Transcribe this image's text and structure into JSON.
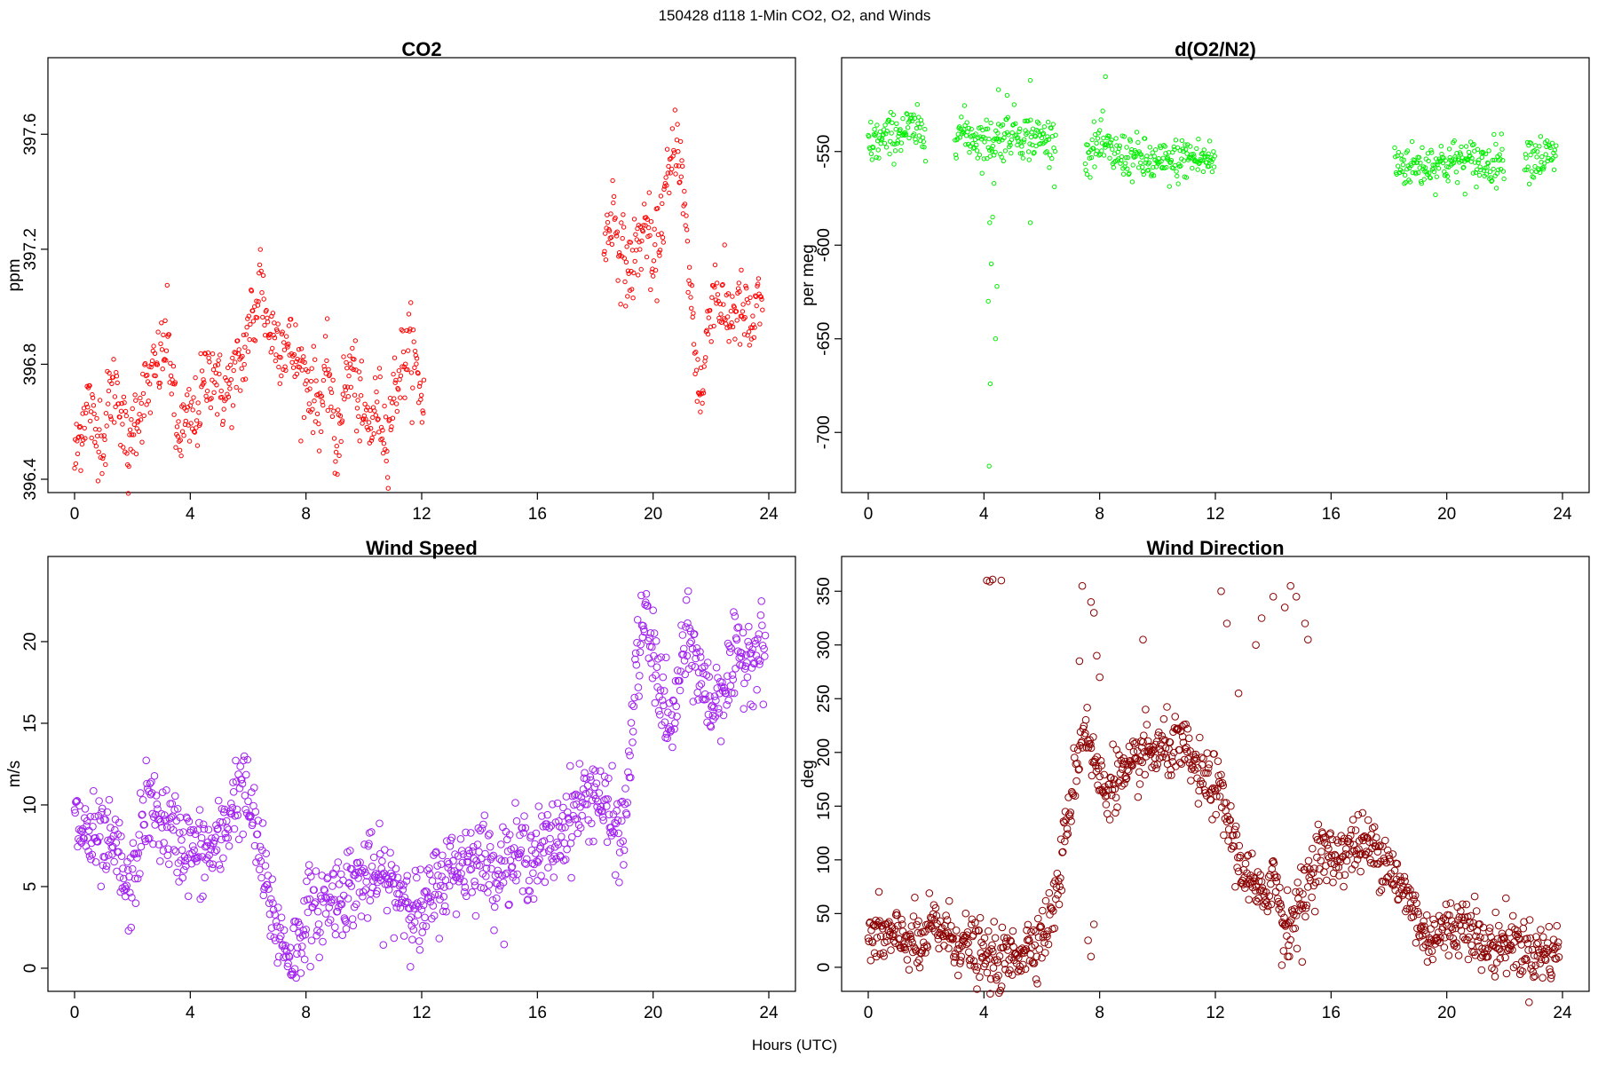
{
  "figure": {
    "title": "150428   d118   1-Min CO2, O2, and Winds",
    "xlabel": "Hours (UTC)"
  },
  "chart_data": [
    {
      "id": "co2",
      "type": "scatter",
      "title": "CO2",
      "xlabel": "",
      "ylabel": "ppm",
      "xlim": [
        0,
        24
      ],
      "ylim": [
        396.4,
        397.82
      ],
      "xticks": [
        0,
        4,
        8,
        12,
        16,
        20,
        24
      ],
      "yticks": [
        396.4,
        396.8,
        397.2,
        397.6
      ],
      "ytick_labels": [
        "396.4",
        "396.8",
        "397.2",
        "397.6"
      ],
      "color": "#ff0000",
      "marker_radius": 2.2,
      "segments": [
        [
          0.0,
          396.46
        ],
        [
          0.3,
          396.62
        ],
        [
          0.5,
          396.68
        ],
        [
          0.7,
          396.55
        ],
        [
          0.9,
          396.6
        ],
        [
          1.0,
          396.5
        ],
        [
          1.2,
          396.7
        ],
        [
          1.5,
          396.72
        ],
        [
          1.7,
          396.58
        ],
        [
          1.9,
          396.44
        ],
        [
          2.0,
          396.6
        ],
        [
          3.0,
          396.82
        ],
        [
          3.2,
          396.9
        ],
        [
          3.4,
          396.74
        ],
        [
          3.5,
          396.55
        ],
        [
          3.8,
          396.58
        ],
        [
          4.0,
          396.6
        ],
        [
          4.2,
          396.62
        ],
        [
          4.5,
          396.74
        ],
        [
          4.8,
          396.8
        ],
        [
          5.0,
          396.7
        ],
        [
          5.3,
          396.7
        ],
        [
          5.5,
          396.76
        ],
        [
          5.8,
          396.8
        ],
        [
          6.0,
          396.92
        ],
        [
          6.1,
          396.98
        ],
        [
          6.2,
          396.9
        ],
        [
          6.4,
          397.15
        ],
        [
          6.5,
          397.04
        ],
        [
          6.7,
          396.92
        ],
        [
          7.5,
          396.85
        ],
        [
          7.8,
          396.78
        ],
        [
          8.2,
          396.72
        ],
        [
          8.5,
          396.65
        ],
        [
          8.8,
          396.8
        ],
        [
          9.0,
          396.48
        ],
        [
          9.3,
          396.7
        ],
        [
          9.6,
          396.8
        ],
        [
          9.9,
          396.62
        ],
        [
          10.2,
          396.58
        ],
        [
          10.5,
          396.66
        ],
        [
          10.8,
          396.54
        ],
        [
          11.0,
          396.68
        ],
        [
          11.3,
          396.8
        ],
        [
          11.6,
          396.86
        ],
        [
          11.9,
          396.74
        ],
        [
          12.1,
          396.64
        ],
        null,
        [
          18.3,
          397.2
        ],
        [
          18.6,
          397.35
        ],
        [
          18.9,
          397.18
        ],
        [
          19.2,
          397.12
        ],
        [
          19.5,
          397.22
        ],
        [
          19.8,
          397.3
        ],
        [
          20.0,
          397.1
        ],
        [
          20.2,
          397.25
        ],
        [
          20.4,
          397.38
        ],
        [
          20.6,
          397.45
        ],
        [
          20.8,
          397.62
        ],
        [
          20.95,
          397.5
        ],
        [
          21.1,
          397.3
        ],
        [
          21.3,
          397.05
        ],
        [
          21.5,
          396.78
        ],
        [
          21.7,
          396.68
        ],
        [
          21.9,
          396.95
        ],
        [
          22.1,
          397.08
        ],
        [
          22.3,
          397.02
        ],
        [
          22.6,
          396.96
        ],
        [
          22.9,
          397.0
        ],
        [
          23.2,
          396.96
        ],
        [
          23.4,
          396.92
        ],
        [
          23.6,
          396.99
        ],
        [
          23.8,
          396.98
        ]
      ],
      "noise": 0.07
    },
    {
      "id": "o2",
      "type": "scatter",
      "title": "d(O2/N2)",
      "xlabel": "",
      "ylabel": "per meg",
      "xlim": [
        0,
        24
      ],
      "ylim": [
        -725,
        -507
      ],
      "xticks": [
        0,
        4,
        8,
        12,
        16,
        20,
        24
      ],
      "yticks": [
        -700,
        -650,
        -600,
        -550
      ],
      "ytick_labels": [
        "-700",
        "-650",
        "-600",
        "-550"
      ],
      "color": "#00ee00",
      "marker_radius": 2.2,
      "segments": [
        [
          0.0,
          -546
        ],
        [
          0.5,
          -544
        ],
        [
          1.0,
          -540
        ],
        [
          1.5,
          -538
        ],
        [
          2.0,
          -542
        ],
        null,
        [
          3.0,
          -538
        ],
        [
          3.5,
          -541
        ],
        [
          4.0,
          -545
        ],
        [
          4.5,
          -543
        ],
        [
          5.0,
          -539
        ],
        [
          5.5,
          -542
        ],
        [
          6.0,
          -543
        ],
        [
          6.5,
          -545
        ],
        null,
        [
          7.5,
          -552
        ],
        [
          8.0,
          -546
        ],
        [
          8.5,
          -552
        ],
        [
          9.0,
          -552
        ],
        [
          9.5,
          -555
        ],
        [
          10.0,
          -557
        ],
        [
          10.5,
          -556
        ],
        [
          11.0,
          -553
        ],
        [
          11.5,
          -554
        ],
        [
          12.0,
          -555
        ],
        null,
        [
          18.2,
          -556
        ],
        [
          19.0,
          -558
        ],
        [
          19.5,
          -556
        ],
        [
          20.0,
          -556
        ],
        [
          20.5,
          -555
        ],
        [
          21.0,
          -556
        ],
        [
          21.5,
          -556
        ],
        [
          22.0,
          -553
        ],
        null,
        [
          22.7,
          -551
        ],
        [
          23.2,
          -553
        ],
        [
          23.8,
          -553
        ]
      ],
      "outliers": [
        [
          4.2,
          -588
        ],
        [
          4.25,
          -610
        ],
        [
          4.3,
          -585
        ],
        [
          4.15,
          -630
        ],
        [
          4.22,
          -674
        ],
        [
          4.18,
          -718
        ],
        [
          4.4,
          -650
        ],
        [
          4.45,
          -622
        ],
        [
          4.35,
          -567
        ],
        [
          4.5,
          -517
        ],
        [
          5.6,
          -512
        ],
        [
          5.6,
          -588
        ],
        [
          8.2,
          -510
        ],
        [
          4.8,
          -520
        ]
      ],
      "noise": 6
    },
    {
      "id": "wind_speed",
      "type": "scatter",
      "title": "Wind Speed",
      "xlabel": "",
      "ylabel": "m/s",
      "xlim": [
        0,
        24
      ],
      "ylim": [
        -0.6,
        24.4
      ],
      "xticks": [
        0,
        4,
        8,
        12,
        16,
        20,
        24
      ],
      "yticks": [
        0,
        5,
        10,
        15,
        20
      ],
      "ytick_labels": [
        "0",
        "5",
        "10",
        "15",
        "20"
      ],
      "color": "#a020f0",
      "marker_radius": 3.8,
      "segments": [
        [
          0.0,
          9.0
        ],
        [
          0.5,
          8.0
        ],
        [
          1.0,
          7.4
        ],
        [
          1.5,
          7.0
        ],
        [
          1.8,
          4.5
        ],
        [
          2.0,
          5.0
        ],
        [
          2.3,
          8.5
        ],
        [
          2.5,
          10.0
        ],
        [
          3.0,
          9.0
        ],
        [
          3.5,
          8.0
        ],
        [
          4.0,
          7.2
        ],
        [
          4.5,
          7.0
        ],
        [
          5.0,
          7.5
        ],
        [
          5.3,
          9.0
        ],
        [
          5.5,
          10.5
        ],
        [
          5.8,
          11.0
        ],
        [
          6.0,
          10.2
        ],
        [
          6.3,
          8.0
        ],
        [
          6.6,
          5.0
        ],
        [
          6.9,
          3.0
        ],
        [
          7.2,
          1.5
        ],
        [
          7.5,
          0.9
        ],
        [
          7.8,
          1.5
        ],
        [
          8.0,
          4.0
        ],
        [
          8.3,
          3.0
        ],
        [
          8.6,
          4.0
        ],
        [
          9.0,
          4.5
        ],
        [
          9.5,
          5.0
        ],
        [
          10.0,
          5.5
        ],
        [
          10.5,
          5.5
        ],
        [
          11.0,
          5.0
        ],
        [
          11.5,
          4.5
        ],
        [
          12.0,
          3.0
        ],
        [
          12.5,
          5.0
        ],
        [
          13.0,
          6.0
        ],
        [
          13.5,
          6.5
        ],
        [
          14.0,
          7.0
        ],
        [
          14.5,
          6.0
        ],
        [
          15.0,
          6.5
        ],
        [
          15.5,
          7.0
        ],
        [
          16.0,
          7.0
        ],
        [
          16.5,
          7.5
        ],
        [
          17.0,
          9.0
        ],
        [
          17.5,
          10.0
        ],
        [
          18.0,
          11.0
        ],
        [
          18.5,
          9.0
        ],
        [
          19.0,
          8.0
        ],
        [
          19.4,
          18.0
        ],
        [
          19.7,
          21.5
        ],
        [
          20.0,
          19.0
        ],
        [
          20.3,
          17.0
        ],
        [
          20.6,
          14.0
        ],
        [
          21.0,
          19.0
        ],
        [
          21.3,
          20.0
        ],
        [
          21.6,
          18.0
        ],
        [
          22.0,
          16.0
        ],
        [
          22.3,
          17.0
        ],
        [
          22.7,
          18.0
        ],
        [
          23.0,
          19.0
        ],
        [
          23.5,
          19.5
        ],
        [
          23.9,
          19.5
        ]
      ],
      "noise": 1.3
    },
    {
      "id": "wind_direction",
      "type": "scatter",
      "title": "Wind Direction",
      "xlabel": "",
      "ylabel": "deg",
      "xlim": [
        0,
        24
      ],
      "ylim": [
        -10,
        370
      ],
      "xticks": [
        0,
        4,
        8,
        12,
        16,
        20,
        24
      ],
      "yticks": [
        0,
        50,
        100,
        150,
        200,
        250,
        300,
        350
      ],
      "ytick_labels": [
        "0",
        "50",
        "100",
        "150",
        "200",
        "250",
        "300",
        "350"
      ],
      "color": "#8b0000",
      "marker_radius": 3.8,
      "segments": [
        [
          0.0,
          28
        ],
        [
          0.5,
          30
        ],
        [
          1.0,
          25
        ],
        [
          1.5,
          28
        ],
        [
          1.8,
          15
        ],
        [
          2.2,
          38
        ],
        [
          2.6,
          35
        ],
        [
          3.0,
          25
        ],
        [
          3.5,
          20
        ],
        [
          4.0,
          8
        ],
        [
          4.5,
          5
        ],
        [
          5.0,
          10
        ],
        [
          5.5,
          20
        ],
        [
          6.0,
          30
        ],
        [
          6.3,
          45
        ],
        [
          6.6,
          80
        ],
        [
          6.9,
          140
        ],
        [
          7.2,
          190
        ],
        [
          7.5,
          230
        ],
        [
          7.8,
          190
        ],
        [
          8.2,
          160
        ],
        [
          8.5,
          180
        ],
        [
          9.0,
          175
        ],
        [
          9.5,
          200
        ],
        [
          10.0,
          200
        ],
        [
          10.5,
          205
        ],
        [
          11.0,
          200
        ],
        [
          11.5,
          175
        ],
        [
          12.0,
          170
        ],
        [
          12.4,
          140
        ],
        [
          12.8,
          100
        ],
        [
          13.2,
          80
        ],
        [
          13.6,
          60
        ],
        [
          14.0,
          90
        ],
        [
          14.4,
          40
        ],
        [
          14.8,
          50
        ],
        [
          15.2,
          80
        ],
        [
          15.6,
          110
        ],
        [
          16.0,
          100
        ],
        [
          16.5,
          110
        ],
        [
          17.0,
          115
        ],
        [
          17.5,
          110
        ],
        [
          18.0,
          100
        ],
        [
          18.4,
          70
        ],
        [
          18.8,
          60
        ],
        [
          19.2,
          28
        ],
        [
          19.6,
          32
        ],
        [
          20.0,
          35
        ],
        [
          20.5,
          40
        ],
        [
          20.9,
          45
        ],
        [
          21.2,
          15
        ],
        [
          21.6,
          20
        ],
        [
          22.0,
          25
        ],
        [
          22.4,
          22
        ],
        [
          22.8,
          15
        ],
        [
          23.2,
          13
        ],
        [
          23.6,
          14
        ],
        [
          23.9,
          18
        ]
      ],
      "outliers": [
        [
          4.1,
          360
        ],
        [
          4.2,
          359
        ],
        [
          4.3,
          361
        ],
        [
          4.6,
          360
        ],
        [
          7.4,
          355
        ],
        [
          7.7,
          340
        ],
        [
          7.8,
          330
        ],
        [
          7.9,
          290
        ],
        [
          8.0,
          270
        ],
        [
          7.3,
          285
        ],
        [
          7.6,
          25
        ],
        [
          7.8,
          40
        ],
        [
          7.7,
          10
        ],
        [
          9.5,
          305
        ],
        [
          12.2,
          350
        ],
        [
          12.4,
          320
        ],
        [
          12.8,
          255
        ],
        [
          13.4,
          300
        ],
        [
          13.6,
          325
        ],
        [
          14.0,
          345
        ],
        [
          14.4,
          335
        ],
        [
          14.6,
          355
        ],
        [
          14.8,
          345
        ],
        [
          15.1,
          320
        ],
        [
          15.2,
          305
        ],
        [
          14.5,
          10
        ],
        [
          14.3,
          2
        ],
        [
          15.0,
          5
        ]
      ],
      "noise": 14
    }
  ]
}
